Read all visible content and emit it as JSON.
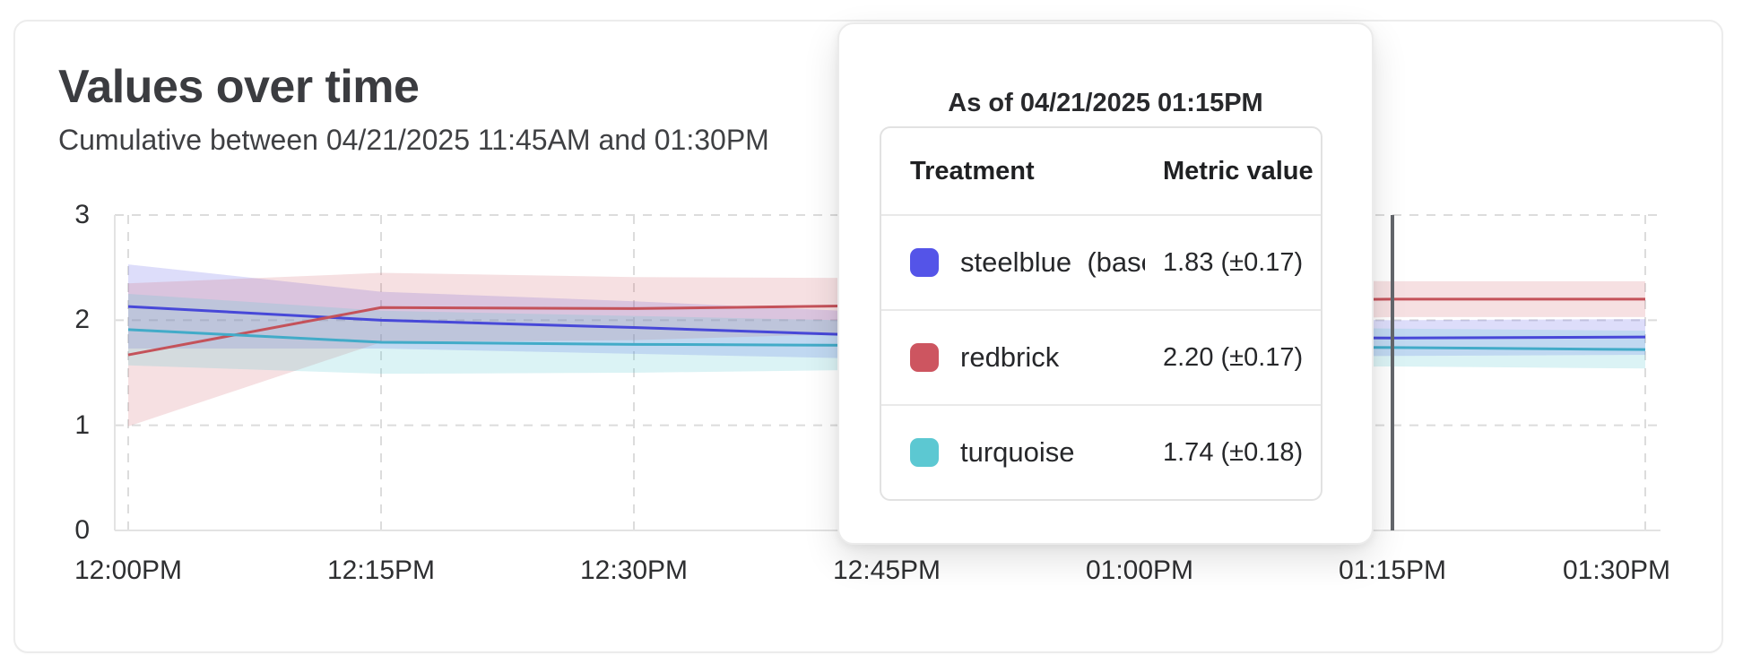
{
  "card": {
    "title": "Values over time",
    "subtitle": "Cumulative between 04/21/2025 11:45AM and 01:30PM"
  },
  "tooltip": {
    "title": "As of 04/21/2025 01:15PM",
    "columns": [
      "Treatment",
      "Metric value"
    ],
    "rows": [
      {
        "label": "steelblue  (baseli",
        "value": "1.83 (±0.17)",
        "swatch": "#5454e8"
      },
      {
        "label": "redbrick",
        "value": "2.20 (±0.17)",
        "swatch": "#cd5560"
      },
      {
        "label": "turquoise",
        "value": "1.74 (±0.18)",
        "swatch": "#5cc8d2"
      }
    ]
  },
  "chart_data": {
    "type": "line",
    "title": "Values over time",
    "xlabel": "",
    "ylabel": "",
    "x_labels": [
      "12:00PM",
      "12:15PM",
      "12:30PM",
      "12:45PM",
      "01:00PM",
      "01:15PM",
      "01:30PM"
    ],
    "y_ticks": [
      0,
      1,
      2,
      3
    ],
    "ylim": [
      0,
      3
    ],
    "grid": "dashed",
    "legend_position": "tooltip",
    "as_of": {
      "label": "01:15PM",
      "index": 5,
      "line_color": "#63666b"
    },
    "series": [
      {
        "name": "steelblue",
        "color": "#4748d8",
        "band_color": "rgba(84,84,232,0.20)",
        "values": [
          2.13,
          2.0,
          1.93,
          1.85,
          1.84,
          1.83,
          1.84
        ],
        "ci": [
          0.4,
          0.27,
          0.25,
          0.22,
          0.19,
          0.17,
          0.17
        ]
      },
      {
        "name": "redbrick",
        "color": "#c4525a",
        "band_color": "rgba(205,85,96,0.18)",
        "values": [
          1.67,
          2.12,
          2.11,
          2.14,
          2.18,
          2.2,
          2.2
        ],
        "ci": [
          0.68,
          0.33,
          0.3,
          0.26,
          0.21,
          0.17,
          0.17
        ]
      },
      {
        "name": "turquoise",
        "color": "#42abc8",
        "band_color": "rgba(92,200,210,0.22)",
        "values": [
          1.91,
          1.79,
          1.77,
          1.76,
          1.75,
          1.74,
          1.72
        ],
        "ci": [
          0.34,
          0.3,
          0.27,
          0.23,
          0.2,
          0.18,
          0.18
        ]
      }
    ]
  }
}
